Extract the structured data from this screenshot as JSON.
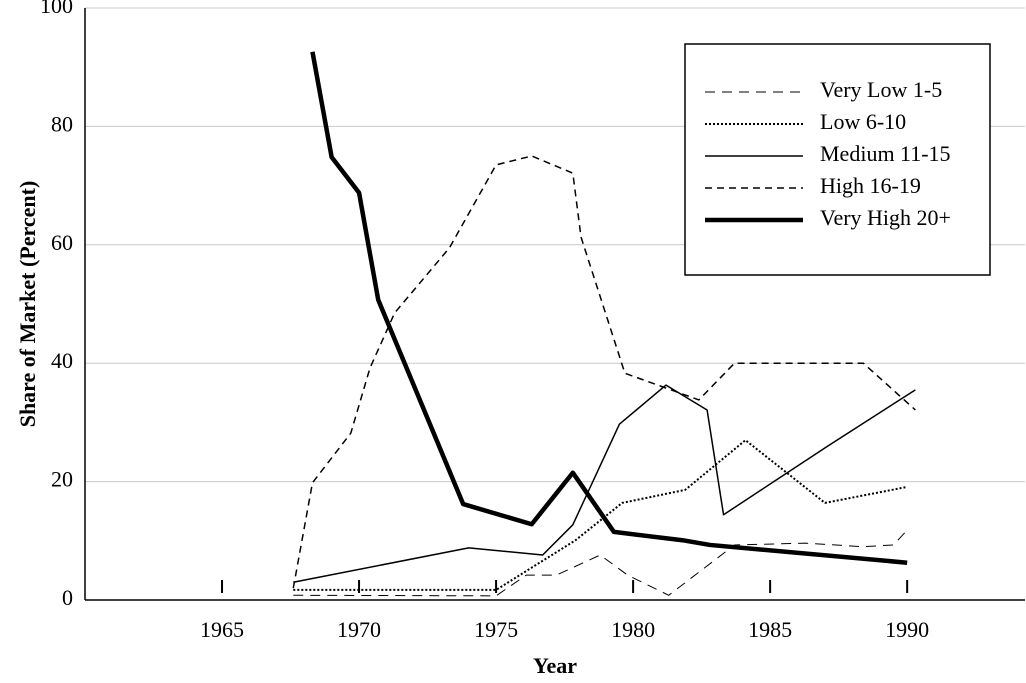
{
  "chart_data": {
    "type": "line",
    "xlabel": "Year",
    "ylabel": "Share of Market (Percent)",
    "xlim": [
      1960,
      1994.3
    ],
    "xticks": [
      1965,
      1970,
      1975,
      1980,
      1985,
      1990
    ],
    "ylim": [
      0,
      100
    ],
    "yticks": [
      0,
      20,
      40,
      60,
      80,
      100
    ],
    "grid": true,
    "legend": "upper right",
    "series": [
      {
        "name": "Very Low 1-5",
        "color": "#000000",
        "style": "dashed",
        "width": 1,
        "x": [
          1967.6,
          1975,
          1976.1,
          1977.2,
          1978.8,
          1979.8,
          1981.3,
          1983.7,
          1986.3,
          1988.4,
          1989.5,
          1990
        ],
        "values": [
          0.8,
          0.7,
          4.2,
          4.2,
          7.6,
          4.2,
          0.8,
          9.3,
          9.6,
          9,
          9.3,
          11.8
        ]
      },
      {
        "name": "Low 6-10",
        "color": "#000000",
        "style": "dotted",
        "width": 2,
        "x": [
          1967.6,
          1975,
          1977.9,
          1979.6,
          1981.9,
          1984.1,
          1987,
          1990
        ],
        "values": [
          1.7,
          1.7,
          10.1,
          16.4,
          18.6,
          27,
          16.4,
          19.1
        ]
      },
      {
        "name": "Medium 11-15",
        "color": "#000000",
        "style": "solid",
        "width": 1.5,
        "x": [
          1967.6,
          1974,
          1976.7,
          1977.8,
          1979.5,
          1981.2,
          1982.7,
          1983.3,
          1987.1,
          1990.3
        ],
        "values": [
          3,
          8.8,
          7.6,
          12.7,
          29.7,
          36.3,
          32.1,
          14.4,
          26,
          35.5
        ]
      },
      {
        "name": "High 16-19",
        "color": "#000000",
        "style": "dashed2",
        "width": 1.5,
        "x": [
          1967.6,
          1968.3,
          1969.7,
          1970.4,
          1971.3,
          1973.3,
          1975,
          1976.3,
          1977.8,
          1978.1,
          1979.7,
          1982.4,
          1983.7,
          1988.4,
          1990.3
        ],
        "values": [
          2,
          19.8,
          28.2,
          39.2,
          48.5,
          59.5,
          73.5,
          75,
          72.1,
          61.3,
          38.3,
          33.8,
          40,
          40,
          32.1
        ]
      },
      {
        "name": "Very High 20+",
        "color": "#000000",
        "style": "solid",
        "width": 4.5,
        "x": [
          1968.3,
          1969,
          1970,
          1970.7,
          1973.8,
          1976.3,
          1977.8,
          1979.3,
          1981.8,
          1982.8,
          1990
        ],
        "values": [
          92.6,
          74.8,
          68.8,
          50.7,
          16.2,
          12.8,
          21.5,
          11.5,
          10.1,
          9.3,
          6.3
        ]
      }
    ]
  }
}
